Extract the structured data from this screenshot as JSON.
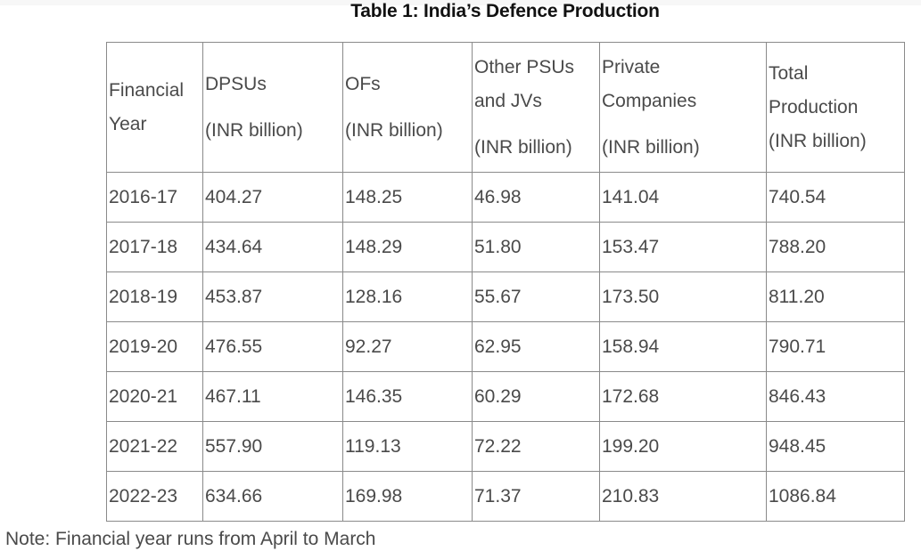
{
  "title": "Table 1: India’s Defence Production",
  "table": {
    "headers": [
      {
        "lines": [
          "Financial",
          "Year"
        ]
      },
      {
        "lines": [
          "DPSUs",
          "",
          "(INR billion)"
        ]
      },
      {
        "lines": [
          "OFs",
          "",
          "(INR billion)"
        ]
      },
      {
        "lines": [
          "Other PSUs",
          "and JVs",
          "",
          "(INR billion)"
        ]
      },
      {
        "lines": [
          "Private",
          "Companies",
          "",
          "(INR billion)"
        ]
      },
      {
        "lines": [
          "Total",
          "Production",
          "(INR billion)"
        ]
      }
    ],
    "rows": [
      [
        "2016-17",
        "404.27",
        "148.25",
        "46.98",
        "141.04",
        "740.54"
      ],
      [
        "2017-18",
        "434.64",
        "148.29",
        "51.80",
        "153.47",
        "788.20"
      ],
      [
        "2018-19",
        "453.87",
        "128.16",
        "55.67",
        "173.50",
        "811.20"
      ],
      [
        "2019-20",
        "476.55",
        "92.27",
        "62.95",
        "158.94",
        "790.71"
      ],
      [
        "2020-21",
        "467.11",
        "146.35",
        "60.29",
        "172.68",
        "846.43"
      ],
      [
        "2021-22",
        "557.90",
        "119.13",
        "72.22",
        "199.20",
        "948.45"
      ],
      [
        "2022-23",
        "634.66",
        "169.98",
        "71.37",
        "210.83",
        "1086.84"
      ]
    ]
  },
  "note": "Note: Financial year runs from April to March"
}
